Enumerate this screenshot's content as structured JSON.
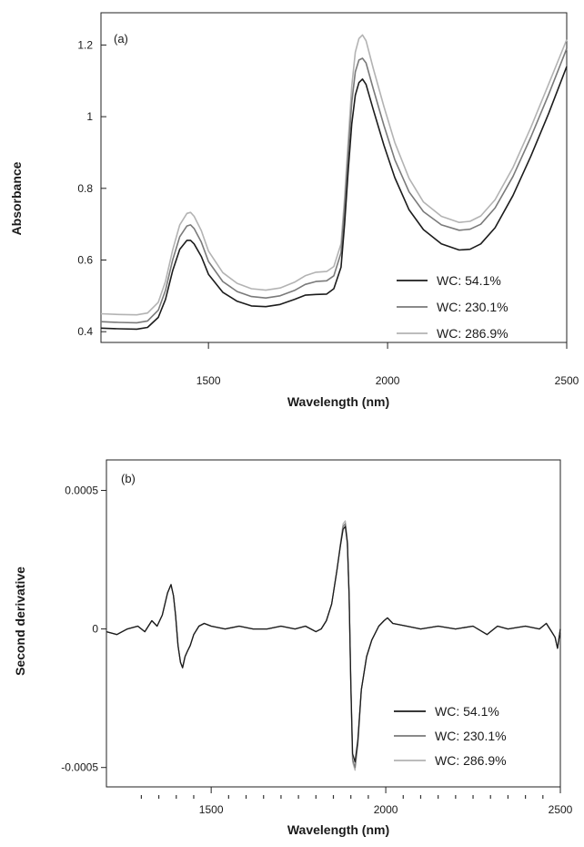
{
  "chart_data": [
    {
      "type": "line",
      "panel_label": "(a)",
      "xlabel": "Wavelength (nm)",
      "ylabel": "Absorbance",
      "xlim": [
        1200,
        2500
      ],
      "ylim": [
        0.37,
        1.29
      ],
      "xticks": [
        1500,
        2000,
        2500
      ],
      "xtick_labels": [
        "1500",
        "2000",
        "2500"
      ],
      "yticks": [
        0.4,
        0.6,
        0.8,
        1.0,
        1.2
      ],
      "ytick_labels": [
        "0.4",
        "0.6",
        "0.8",
        "1",
        "1.2"
      ],
      "grid": false,
      "legend_position": "bottom-right",
      "x": [
        1200,
        1250,
        1300,
        1330,
        1360,
        1380,
        1400,
        1420,
        1440,
        1450,
        1460,
        1480,
        1500,
        1540,
        1580,
        1620,
        1660,
        1700,
        1740,
        1770,
        1800,
        1830,
        1850,
        1870,
        1880,
        1890,
        1900,
        1910,
        1920,
        1930,
        1940,
        1960,
        1990,
        2020,
        2060,
        2100,
        2150,
        2200,
        2230,
        2260,
        2300,
        2350,
        2400,
        2450,
        2500
      ],
      "series": [
        {
          "name": "WC: 54.1%",
          "color": "#1c1c1c",
          "values": [
            0.41,
            0.408,
            0.407,
            0.412,
            0.44,
            0.49,
            0.57,
            0.63,
            0.655,
            0.655,
            0.645,
            0.61,
            0.56,
            0.51,
            0.485,
            0.472,
            0.47,
            0.476,
            0.49,
            0.502,
            0.504,
            0.505,
            0.52,
            0.58,
            0.7,
            0.85,
            0.98,
            1.06,
            1.095,
            1.105,
            1.09,
            1.02,
            0.92,
            0.83,
            0.74,
            0.685,
            0.645,
            0.628,
            0.63,
            0.645,
            0.69,
            0.78,
            0.89,
            1.01,
            1.14
          ]
        },
        {
          "name": "WC: 230.1%",
          "color": "#7a7a7a",
          "values": [
            0.428,
            0.426,
            0.425,
            0.43,
            0.46,
            0.515,
            0.6,
            0.665,
            0.695,
            0.698,
            0.688,
            0.65,
            0.596,
            0.54,
            0.512,
            0.498,
            0.494,
            0.5,
            0.515,
            0.532,
            0.54,
            0.542,
            0.556,
            0.62,
            0.745,
            0.9,
            1.04,
            1.125,
            1.158,
            1.163,
            1.15,
            1.078,
            0.975,
            0.88,
            0.79,
            0.735,
            0.698,
            0.683,
            0.686,
            0.7,
            0.745,
            0.833,
            0.943,
            1.063,
            1.19
          ]
        },
        {
          "name": "WC: 286.9%",
          "color": "#b3b3b3",
          "values": [
            0.45,
            0.448,
            0.447,
            0.452,
            0.482,
            0.54,
            0.628,
            0.698,
            0.73,
            0.733,
            0.722,
            0.682,
            0.625,
            0.565,
            0.535,
            0.52,
            0.516,
            0.522,
            0.538,
            0.556,
            0.566,
            0.568,
            0.582,
            0.645,
            0.772,
            0.932,
            1.085,
            1.18,
            1.218,
            1.228,
            1.212,
            1.135,
            1.028,
            0.928,
            0.828,
            0.762,
            0.722,
            0.705,
            0.708,
            0.723,
            0.768,
            0.858,
            0.97,
            1.092,
            1.215
          ]
        }
      ]
    },
    {
      "type": "line",
      "panel_label": "(b)",
      "xlabel": "Wavelength (nm)",
      "ylabel": "Second derivative",
      "xlim": [
        1200,
        2500
      ],
      "ylim": [
        -0.00057,
        0.00061
      ],
      "xticks": [
        1500,
        2000,
        2500
      ],
      "xtick_labels": [
        "1500",
        "2000",
        "2500"
      ],
      "yticks": [
        -0.0005,
        0,
        0.0005
      ],
      "ytick_labels": [
        "-0.0005",
        "0",
        "0.0005"
      ],
      "grid": false,
      "legend_position": "bottom-right",
      "x": [
        1200,
        1230,
        1260,
        1290,
        1310,
        1330,
        1345,
        1360,
        1375,
        1385,
        1392,
        1398,
        1405,
        1412,
        1418,
        1425,
        1432,
        1440,
        1450,
        1465,
        1480,
        1500,
        1540,
        1580,
        1620,
        1660,
        1700,
        1740,
        1770,
        1800,
        1815,
        1830,
        1845,
        1860,
        1870,
        1878,
        1884,
        1890,
        1895,
        1900,
        1905,
        1912,
        1920,
        1930,
        1945,
        1960,
        1980,
        1995,
        2005,
        2020,
        2060,
        2100,
        2150,
        2200,
        2250,
        2290,
        2300,
        2320,
        2350,
        2400,
        2440,
        2460,
        2475,
        2485,
        2492,
        2500
      ],
      "series": [
        {
          "name": "WC: 54.1%",
          "color": "#1c1c1c",
          "values": [
            -1e-05,
            -2e-05,
            0,
            1e-05,
            -1e-05,
            3e-05,
            1e-05,
            5e-05,
            0.00013,
            0.00016,
            0.00012,
            5e-05,
            -6e-05,
            -0.00012,
            -0.00014,
            -0.0001,
            -8e-05,
            -6e-05,
            -2e-05,
            1e-05,
            2e-05,
            1e-05,
            0,
            1e-05,
            0,
            0,
            1e-05,
            0,
            1e-05,
            -1e-05,
            0,
            3e-05,
            9e-05,
            0.00021,
            0.0003,
            0.00036,
            0.00037,
            0.00031,
            0.00012,
            -0.0002,
            -0.00045,
            -0.00048,
            -0.0004,
            -0.00022,
            -0.0001,
            -4e-05,
            1e-05,
            3e-05,
            4e-05,
            2e-05,
            1e-05,
            0,
            1e-05,
            0,
            1e-05,
            -2e-05,
            -1e-05,
            1e-05,
            0,
            1e-05,
            0,
            2e-05,
            -1e-05,
            -3e-05,
            -7e-05,
            0
          ]
        },
        {
          "name": "WC: 230.1%",
          "color": "#7a7a7a",
          "values": [
            -1e-05,
            -2e-05,
            0,
            1e-05,
            -1e-05,
            3e-05,
            1e-05,
            5e-05,
            0.00013,
            0.00016,
            0.00012,
            5e-05,
            -6e-05,
            -0.00012,
            -0.00014,
            -0.0001,
            -8e-05,
            -6e-05,
            -2e-05,
            1e-05,
            2e-05,
            1e-05,
            0,
            1e-05,
            0,
            0,
            1e-05,
            0,
            1e-05,
            -1e-05,
            0,
            3e-05,
            9e-05,
            0.00021,
            0.0003,
            0.00037,
            0.00038,
            0.00031,
            0.00012,
            -0.00021,
            -0.00047,
            -0.0005,
            -0.00041,
            -0.00022,
            -0.0001,
            -4e-05,
            1e-05,
            3e-05,
            4e-05,
            2e-05,
            1e-05,
            0,
            1e-05,
            0,
            1e-05,
            -2e-05,
            -1e-05,
            1e-05,
            0,
            1e-05,
            0,
            2e-05,
            -1e-05,
            -3e-05,
            -7e-05,
            0
          ]
        },
        {
          "name": "WC: 286.9%",
          "color": "#b3b3b3",
          "values": [
            -1e-05,
            -2e-05,
            0,
            1e-05,
            -1e-05,
            3e-05,
            1e-05,
            5e-05,
            0.00013,
            0.00016,
            0.00012,
            5e-05,
            -6e-05,
            -0.00012,
            -0.00014,
            -0.0001,
            -8e-05,
            -6e-05,
            -2e-05,
            1e-05,
            2e-05,
            1e-05,
            0,
            1e-05,
            0,
            0,
            1e-05,
            0,
            1e-05,
            -1e-05,
            0,
            3e-05,
            9e-05,
            0.00021,
            0.00031,
            0.00038,
            0.00039,
            0.00032,
            0.00012,
            -0.00021,
            -0.00048,
            -0.00051,
            -0.00042,
            -0.00022,
            -0.0001,
            -4e-05,
            1e-05,
            3e-05,
            4e-05,
            2e-05,
            1e-05,
            0,
            1e-05,
            0,
            1e-05,
            -2e-05,
            -1e-05,
            1e-05,
            0,
            1e-05,
            0,
            2e-05,
            -1e-05,
            -3e-05,
            -7e-05,
            0
          ]
        }
      ]
    }
  ]
}
